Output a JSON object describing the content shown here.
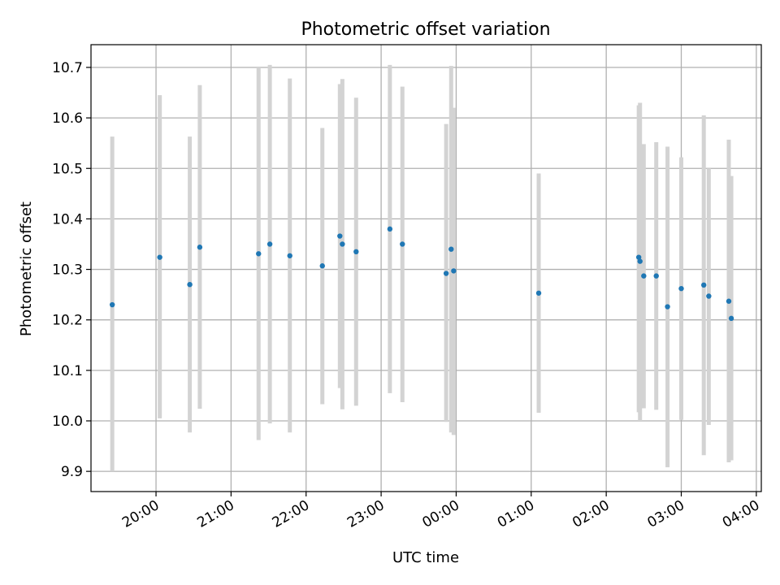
{
  "chart_data": {
    "type": "scatter",
    "title": "Photometric offset variation",
    "xlabel": "UTC time",
    "ylabel": "Photometric offset",
    "x_tick_labels": [
      "20:00",
      "21:00",
      "22:00",
      "23:00",
      "00:00",
      "01:00",
      "02:00",
      "03:00",
      "04:00"
    ],
    "y_tick_values": [
      9.9,
      10.0,
      10.1,
      10.2,
      10.3,
      10.4,
      10.5,
      10.6,
      10.7
    ],
    "y_tick_labels": [
      "9.9",
      "10.0",
      "10.1",
      "10.2",
      "10.3",
      "10.4",
      "10.5",
      "10.6",
      "10.7"
    ],
    "xlim": [
      "19:08",
      "04:04"
    ],
    "ylim": [
      9.86,
      10.745
    ],
    "grid": true,
    "colors": {
      "points": "#1f77b4",
      "errorbars": "#d3d3d3",
      "grid": "#b0b0b0"
    },
    "points": [
      {
        "x": "19:25",
        "y": 10.23,
        "ylow": 9.9,
        "yhigh": 10.563
      },
      {
        "x": "20:03",
        "y": 10.324,
        "ylow": 10.005,
        "yhigh": 10.645
      },
      {
        "x": "20:27",
        "y": 10.27,
        "ylow": 9.977,
        "yhigh": 10.563
      },
      {
        "x": "20:35",
        "y": 10.344,
        "ylow": 10.024,
        "yhigh": 10.665
      },
      {
        "x": "21:22",
        "y": 10.331,
        "ylow": 9.962,
        "yhigh": 10.7
      },
      {
        "x": "21:31",
        "y": 10.35,
        "ylow": 9.995,
        "yhigh": 10.705
      },
      {
        "x": "21:47",
        "y": 10.327,
        "ylow": 9.977,
        "yhigh": 10.678
      },
      {
        "x": "22:13",
        "y": 10.307,
        "ylow": 10.033,
        "yhigh": 10.58
      },
      {
        "x": "22:27",
        "y": 10.366,
        "ylow": 10.065,
        "yhigh": 10.667
      },
      {
        "x": "22:29",
        "y": 10.35,
        "ylow": 10.023,
        "yhigh": 10.677
      },
      {
        "x": "22:40",
        "y": 10.335,
        "ylow": 10.03,
        "yhigh": 10.64
      },
      {
        "x": "23:07",
        "y": 10.38,
        "ylow": 10.055,
        "yhigh": 10.705
      },
      {
        "x": "23:17",
        "y": 10.35,
        "ylow": 10.037,
        "yhigh": 10.662
      },
      {
        "x": "23:52",
        "y": 10.292,
        "ylow": 9.998,
        "yhigh": 10.588
      },
      {
        "x": "23:56",
        "y": 10.34,
        "ylow": 9.977,
        "yhigh": 10.703
      },
      {
        "x": "23:58",
        "y": 10.297,
        "ylow": 9.972,
        "yhigh": 10.62
      },
      {
        "x": "01:06",
        "y": 10.253,
        "ylow": 10.016,
        "yhigh": 10.49
      },
      {
        "x": "02:26",
        "y": 10.324,
        "ylow": 10.017,
        "yhigh": 10.625
      },
      {
        "x": "02:27",
        "y": 10.316,
        "ylow": 10.0,
        "yhigh": 10.63
      },
      {
        "x": "02:30",
        "y": 10.287,
        "ylow": 10.025,
        "yhigh": 10.548
      },
      {
        "x": "02:40",
        "y": 10.287,
        "ylow": 10.022,
        "yhigh": 10.552
      },
      {
        "x": "02:49",
        "y": 10.226,
        "ylow": 9.908,
        "yhigh": 10.543
      },
      {
        "x": "03:00",
        "y": 10.262,
        "ylow": 10.002,
        "yhigh": 10.522
      },
      {
        "x": "03:18",
        "y": 10.269,
        "ylow": 9.932,
        "yhigh": 10.605
      },
      {
        "x": "03:22",
        "y": 10.247,
        "ylow": 9.992,
        "yhigh": 10.5
      },
      {
        "x": "03:38",
        "y": 10.237,
        "ylow": 9.918,
        "yhigh": 10.557
      },
      {
        "x": "03:40",
        "y": 10.203,
        "ylow": 9.922,
        "yhigh": 10.485
      }
    ]
  }
}
